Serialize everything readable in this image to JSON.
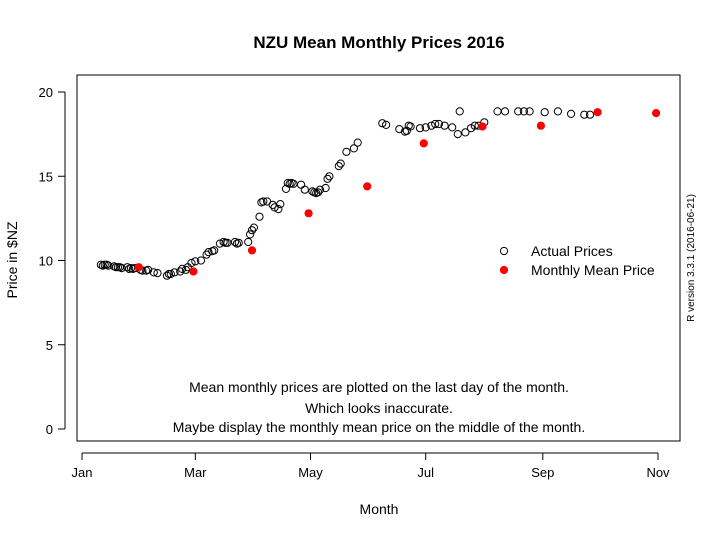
{
  "chart_data": {
    "type": "scatter",
    "title": "NZU Mean Monthly Prices 2016",
    "xlabel": "Month",
    "ylabel": "Price in $NZ",
    "xlim": [
      "2016-01-01",
      "2016-11-01"
    ],
    "ylim": [
      0,
      20
    ],
    "x_ticks": [
      {
        "label": "Jan",
        "date": "2016-01-01"
      },
      {
        "label": "Mar",
        "date": "2016-03-01"
      },
      {
        "label": "May",
        "date": "2016-05-01"
      },
      {
        "label": "Jul",
        "date": "2016-07-01"
      },
      {
        "label": "Sep",
        "date": "2016-09-01"
      },
      {
        "label": "Nov",
        "date": "2016-11-01"
      }
    ],
    "y_ticks": [
      0,
      5,
      10,
      15,
      20
    ],
    "legend_position": "right",
    "series": [
      {
        "name": "Actual Prices",
        "marker": "open-circle",
        "color": "#000000",
        "points": [
          {
            "x": "2016-01-11",
            "y": 9.75
          },
          {
            "x": "2016-01-12",
            "y": 9.7
          },
          {
            "x": "2016-01-13",
            "y": 9.75
          },
          {
            "x": "2016-01-14",
            "y": 9.75
          },
          {
            "x": "2016-01-15",
            "y": 9.7
          },
          {
            "x": "2016-01-18",
            "y": 9.65
          },
          {
            "x": "2016-01-19",
            "y": 9.6
          },
          {
            "x": "2016-01-20",
            "y": 9.6
          },
          {
            "x": "2016-01-21",
            "y": 9.6
          },
          {
            "x": "2016-01-22",
            "y": 9.55
          },
          {
            "x": "2016-01-25",
            "y": 9.6
          },
          {
            "x": "2016-01-26",
            "y": 9.5
          },
          {
            "x": "2016-01-27",
            "y": 9.55
          },
          {
            "x": "2016-01-28",
            "y": 9.5
          },
          {
            "x": "2016-01-29",
            "y": 9.55
          },
          {
            "x": "2016-02-01",
            "y": 9.45
          },
          {
            "x": "2016-02-02",
            "y": 9.4
          },
          {
            "x": "2016-02-04",
            "y": 9.4
          },
          {
            "x": "2016-02-05",
            "y": 9.45
          },
          {
            "x": "2016-02-08",
            "y": 9.3
          },
          {
            "x": "2016-02-10",
            "y": 9.25
          },
          {
            "x": "2016-02-15",
            "y": 9.1
          },
          {
            "x": "2016-02-16",
            "y": 9.2
          },
          {
            "x": "2016-02-17",
            "y": 9.2
          },
          {
            "x": "2016-02-19",
            "y": 9.3
          },
          {
            "x": "2016-02-22",
            "y": 9.35
          },
          {
            "x": "2016-02-23",
            "y": 9.5
          },
          {
            "x": "2016-02-25",
            "y": 9.45
          },
          {
            "x": "2016-02-26",
            "y": 9.6
          },
          {
            "x": "2016-02-28",
            "y": 9.85
          },
          {
            "x": "2016-03-01",
            "y": 9.95
          },
          {
            "x": "2016-03-04",
            "y": 10.0
          },
          {
            "x": "2016-03-07",
            "y": 10.35
          },
          {
            "x": "2016-03-08",
            "y": 10.5
          },
          {
            "x": "2016-03-10",
            "y": 10.55
          },
          {
            "x": "2016-03-11",
            "y": 10.6
          },
          {
            "x": "2016-03-14",
            "y": 11.0
          },
          {
            "x": "2016-03-16",
            "y": 11.1
          },
          {
            "x": "2016-03-17",
            "y": 11.05
          },
          {
            "x": "2016-03-18",
            "y": 11.05
          },
          {
            "x": "2016-03-22",
            "y": 11.1
          },
          {
            "x": "2016-03-23",
            "y": 11.0
          },
          {
            "x": "2016-03-24",
            "y": 11.05
          },
          {
            "x": "2016-03-29",
            "y": 11.1
          },
          {
            "x": "2016-03-30",
            "y": 11.55
          },
          {
            "x": "2016-03-31",
            "y": 11.8
          },
          {
            "x": "2016-04-01",
            "y": 11.95
          },
          {
            "x": "2016-04-04",
            "y": 12.6
          },
          {
            "x": "2016-04-05",
            "y": 13.45
          },
          {
            "x": "2016-04-06",
            "y": 13.5
          },
          {
            "x": "2016-04-08",
            "y": 13.5
          },
          {
            "x": "2016-04-11",
            "y": 13.3
          },
          {
            "x": "2016-04-12",
            "y": 13.15
          },
          {
            "x": "2016-04-14",
            "y": 13.05
          },
          {
            "x": "2016-04-15",
            "y": 13.35
          },
          {
            "x": "2016-04-18",
            "y": 14.25
          },
          {
            "x": "2016-04-19",
            "y": 14.6
          },
          {
            "x": "2016-04-20",
            "y": 14.55
          },
          {
            "x": "2016-04-21",
            "y": 14.6
          },
          {
            "x": "2016-04-22",
            "y": 14.55
          },
          {
            "x": "2016-04-26",
            "y": 14.5
          },
          {
            "x": "2016-04-28",
            "y": 14.2
          },
          {
            "x": "2016-05-02",
            "y": 14.1
          },
          {
            "x": "2016-05-03",
            "y": 14.05
          },
          {
            "x": "2016-05-04",
            "y": 14.0
          },
          {
            "x": "2016-05-05",
            "y": 14.05
          },
          {
            "x": "2016-05-06",
            "y": 14.2
          },
          {
            "x": "2016-05-09",
            "y": 14.3
          },
          {
            "x": "2016-05-10",
            "y": 14.85
          },
          {
            "x": "2016-05-11",
            "y": 15.0
          },
          {
            "x": "2016-05-16",
            "y": 15.6
          },
          {
            "x": "2016-05-17",
            "y": 15.75
          },
          {
            "x": "2016-05-20",
            "y": 16.45
          },
          {
            "x": "2016-05-24",
            "y": 16.65
          },
          {
            "x": "2016-05-26",
            "y": 17.0
          },
          {
            "x": "2016-06-08",
            "y": 18.15
          },
          {
            "x": "2016-06-10",
            "y": 18.05
          },
          {
            "x": "2016-06-17",
            "y": 17.8
          },
          {
            "x": "2016-06-20",
            "y": 17.65
          },
          {
            "x": "2016-06-21",
            "y": 17.7
          },
          {
            "x": "2016-06-22",
            "y": 18.0
          },
          {
            "x": "2016-06-23",
            "y": 17.95
          },
          {
            "x": "2016-06-28",
            "y": 17.85
          },
          {
            "x": "2016-07-01",
            "y": 17.9
          },
          {
            "x": "2016-07-04",
            "y": 18.0
          },
          {
            "x": "2016-07-06",
            "y": 18.1
          },
          {
            "x": "2016-07-08",
            "y": 18.1
          },
          {
            "x": "2016-07-11",
            "y": 18.0
          },
          {
            "x": "2016-07-15",
            "y": 17.9
          },
          {
            "x": "2016-07-18",
            "y": 17.5
          },
          {
            "x": "2016-07-19",
            "y": 18.85
          },
          {
            "x": "2016-07-22",
            "y": 17.6
          },
          {
            "x": "2016-07-25",
            "y": 17.85
          },
          {
            "x": "2016-07-27",
            "y": 18.0
          },
          {
            "x": "2016-07-29",
            "y": 18.0
          },
          {
            "x": "2016-08-01",
            "y": 18.2
          },
          {
            "x": "2016-08-08",
            "y": 18.85
          },
          {
            "x": "2016-08-12",
            "y": 18.85
          },
          {
            "x": "2016-08-19",
            "y": 18.85
          },
          {
            "x": "2016-08-22",
            "y": 18.85
          },
          {
            "x": "2016-08-25",
            "y": 18.85
          },
          {
            "x": "2016-09-02",
            "y": 18.8
          },
          {
            "x": "2016-09-09",
            "y": 18.85
          },
          {
            "x": "2016-09-16",
            "y": 18.7
          },
          {
            "x": "2016-09-23",
            "y": 18.65
          },
          {
            "x": "2016-09-26",
            "y": 18.65
          }
        ]
      },
      {
        "name": "Monthly Mean Price",
        "marker": "filled-circle",
        "color": "#ff0000",
        "points": [
          {
            "x": "2016-01-31",
            "y": 9.6
          },
          {
            "x": "2016-02-29",
            "y": 9.35
          },
          {
            "x": "2016-03-31",
            "y": 10.6
          },
          {
            "x": "2016-04-30",
            "y": 12.8
          },
          {
            "x": "2016-05-31",
            "y": 14.4
          },
          {
            "x": "2016-06-30",
            "y": 16.95
          },
          {
            "x": "2016-07-31",
            "y": 17.95
          },
          {
            "x": "2016-08-31",
            "y": 18.0
          },
          {
            "x": "2016-09-30",
            "y": 18.8
          },
          {
            "x": "2016-10-31",
            "y": 18.75
          }
        ]
      }
    ],
    "annotation": [
      "Mean monthly prices are plotted on the last day of the month.",
      "Which looks inaccurate.",
      "Maybe display the monthly mean price on the middle of the month."
    ],
    "side_text": "R version 3.3.1 (2016-06-21)"
  }
}
